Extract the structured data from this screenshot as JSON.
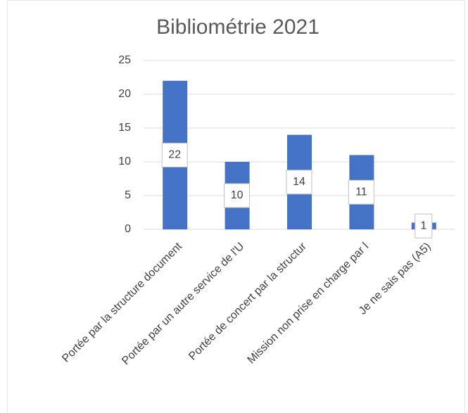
{
  "chart_data": {
    "type": "bar",
    "title": "Bibliométrie 2021",
    "categories": [
      "Portée par la structure document",
      "Portée par un autre service de l'U",
      "Portée de concert par la structur",
      "Mission non prise en charge par l",
      "Je ne sais pas (A5)"
    ],
    "values": [
      22,
      10,
      14,
      11,
      1
    ],
    "color": "#4472c4",
    "ylim": [
      0,
      25
    ],
    "yticks": [
      0,
      5,
      10,
      15,
      20,
      25
    ],
    "grid": true
  }
}
